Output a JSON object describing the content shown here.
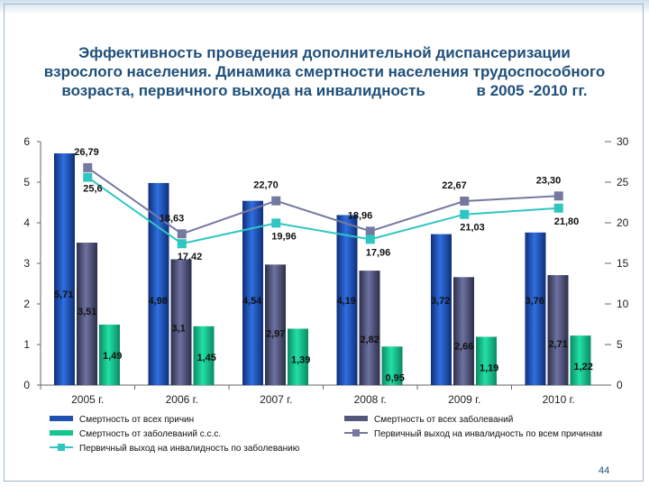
{
  "title": {
    "line1": "Эффективность проведения дополнительной диспансеризации",
    "line2": "взрослого населения. Динамика смертности населения трудоспособного",
    "line3": "возраста, первичного выхода на инвалидность            в 2005 -2010 гг."
  },
  "page_number": "44",
  "colors": {
    "all_causes": "#1f4fb0",
    "all_diseases": "#55587a",
    "cardio": "#15c58f",
    "disability_all": "#7579a0",
    "disability_disease": "#2fc6c2",
    "title": "#1f4f7a"
  },
  "chart_data": {
    "type": "bar",
    "categories": [
      "2005 г.",
      "2006 г.",
      "2007 г.",
      "2008 г.",
      "2009 г.",
      "2010 г."
    ],
    "left_axis": {
      "ylim": [
        0,
        6
      ],
      "ticks": [
        "0",
        "1",
        "2",
        "3",
        "4",
        "5",
        "6"
      ]
    },
    "right_axis": {
      "ylim": [
        0,
        30
      ],
      "ticks": [
        "0",
        "5",
        "10",
        "15",
        "20",
        "25",
        "30"
      ]
    },
    "series": [
      {
        "name": "Смертность от всех причин",
        "kind": "bar",
        "axis": "left",
        "values": [
          5.71,
          4.98,
          4.54,
          4.19,
          3.72,
          3.76
        ],
        "labels": [
          "5,71",
          "4,98",
          "4,54",
          "4,19",
          "3,72",
          "3,76"
        ]
      },
      {
        "name": "Смертность от всех заболеваний",
        "kind": "bar",
        "axis": "left",
        "values": [
          3.51,
          3.1,
          2.97,
          2.82,
          2.66,
          2.71
        ],
        "labels": [
          "3,51",
          "3,1",
          "2,97",
          "2,82",
          "2,66",
          "2,71"
        ]
      },
      {
        "name": "Смертность от заболеваний с.с.с.",
        "kind": "bar",
        "axis": "left",
        "values": [
          1.49,
          1.45,
          1.39,
          0.95,
          1.19,
          1.22
        ],
        "labels": [
          "1,49",
          "1,45",
          "1,39",
          "0,95",
          "1,19",
          "1,22"
        ]
      },
      {
        "name": "Первичный выход на инвалидность по всем причинам",
        "kind": "line",
        "axis": "right",
        "values": [
          26.79,
          18.63,
          22.7,
          18.96,
          22.67,
          23.3
        ],
        "labels": [
          "26,79",
          "18,63",
          "22,70",
          "18,96",
          "22,67",
          "23,30"
        ]
      },
      {
        "name": "Первичный выход на инвалидность по заболеванию",
        "kind": "line",
        "axis": "right",
        "values": [
          25.6,
          17.42,
          19.96,
          17.96,
          21.03,
          21.8
        ],
        "labels": [
          "25,6",
          "17,42",
          "19,96",
          "17,96",
          "21,03",
          "21,80"
        ]
      }
    ],
    "grid": false,
    "legend": "bottom"
  }
}
